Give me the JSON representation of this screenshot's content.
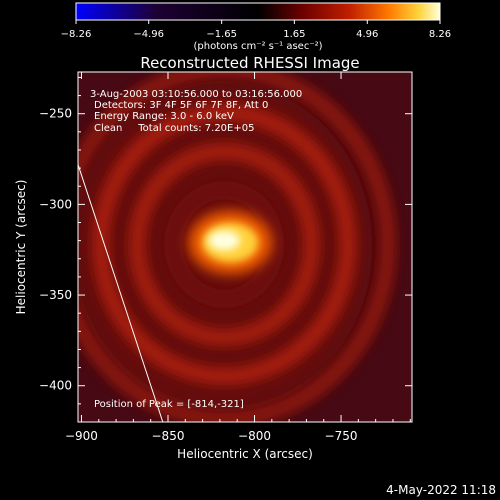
{
  "chart_data": {
    "type": "heatmap",
    "title": "Reconstructed RHESSI Image",
    "xlabel": "Heliocentric X (arcsec)",
    "ylabel": "Heliocentric Y (arcsec)",
    "xlim": [
      -902,
      -709
    ],
    "ylim": [
      -420,
      -227
    ],
    "x_ticks": [
      -900,
      -850,
      -800,
      -750
    ],
    "y_ticks": [
      -250,
      -300,
      -350,
      -400
    ],
    "x_tick_labels": [
      "−900",
      "−850",
      "−800",
      "−750"
    ],
    "y_tick_labels": [
      "−250",
      "−300",
      "−350",
      "−400"
    ],
    "colorbar": {
      "min": -8.26,
      "max": 8.26,
      "ticks": [
        -8.26,
        -4.96,
        -1.65,
        1.65,
        4.96,
        8.26
      ],
      "tick_labels": [
        "−8.26",
        "−4.96",
        "−1.65",
        "1.65",
        "4.96",
        "8.26"
      ],
      "units": "(photons cm⁻² s⁻¹ asec⁻²)",
      "colors": [
        "#0000ff",
        "#1d0034",
        "#000000",
        "#6a0000",
        "#c01e00",
        "#ff7a00",
        "#ffd23a",
        "#ffffd8"
      ]
    },
    "annotations": [
      "3-Aug-2003 03:10:56.000 to 03:16:56.000",
      "Detectors: 3F 4F 5F 6F 7F 8F, Att 0",
      "Energy Range: 3.0 - 6.0 keV",
      "Clean     Total counts: 7.20E+05"
    ],
    "peak_label": "Position of Peak = [-814,-321]",
    "peak": {
      "x": -814,
      "y": -321,
      "value": 8.26
    },
    "limb_line": [
      [
        -902,
        -278
      ],
      [
        -853,
        -420
      ]
    ],
    "background_level": 1.4,
    "rings": [
      {
        "radius_arcsec": 28,
        "level": 2.2
      },
      {
        "radius_arcsec": 48,
        "level": 3.0
      },
      {
        "radius_arcsec": 68,
        "level": 3.1
      },
      {
        "radius_arcsec": 90,
        "level": 2.6
      }
    ]
  },
  "footer": {
    "date": "4-May-2022 11:18"
  }
}
